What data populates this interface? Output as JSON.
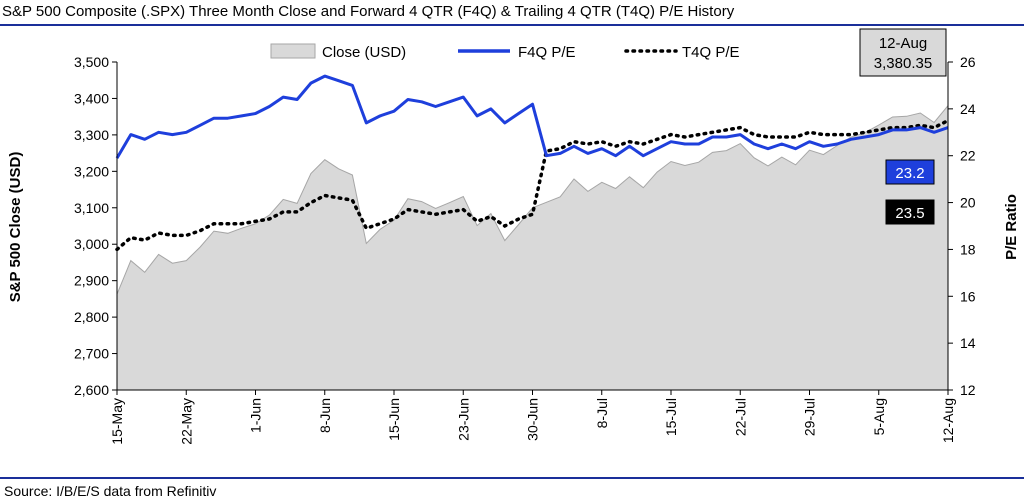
{
  "chart_data": {
    "type": "area",
    "title": "S&P 500 Composite (.SPX) Three Month Close and Forward 4 QTR (F4Q) & Trailing 4 QTR (T4Q) P/E History",
    "source": "Source: I/B/E/S data from Refinitiv",
    "ylabel_left": "S&P 500 Close (USD)",
    "ylabel_right": "P/E Ratio",
    "ylim_left": [
      2600,
      3500
    ],
    "ylim_right": [
      12,
      26
    ],
    "yticks_left": [
      "3,500",
      "3,400",
      "3,300",
      "3,200",
      "3,100",
      "3,000",
      "2,900",
      "2,800",
      "2,700",
      "2,600"
    ],
    "yticks_right": [
      "26",
      "24",
      "22",
      "20",
      "18",
      "16",
      "14",
      "12"
    ],
    "xticks": [
      "15-May",
      "22-May",
      "1-Jun",
      "8-Jun",
      "15-Jun",
      "23-Jun",
      "30-Jun",
      "8-Jul",
      "15-Jul",
      "22-Jul",
      "29-Jul",
      "5-Aug",
      "12-Aug"
    ],
    "grid": false,
    "legend": [
      "Close (USD)",
      "F4Q P/E",
      "T4Q P/E"
    ],
    "legend_position": "top",
    "callout_date": "12-Aug",
    "callout_close": "3,380.35",
    "label_f4q": "23.2",
    "label_t4q": "23.5",
    "colors": {
      "close_fill": "#d9d9d9",
      "close_stroke": "#a6a6a6",
      "f4q": "#1e3fdc",
      "t4q": "#000000",
      "accent_line": "#1a2f9a"
    },
    "series": [
      {
        "name": "Close (USD)",
        "axis": "left",
        "values": [
          2863,
          2955,
          2923,
          2972,
          2948,
          2955,
          2992,
          3036,
          3030,
          3044,
          3056,
          3080,
          3123,
          3112,
          3194,
          3232,
          3207,
          3190,
          3002,
          3041,
          3066,
          3125,
          3117,
          3098,
          3114,
          3131,
          3051,
          3084,
          3010,
          3054,
          3100,
          3115,
          3130,
          3179,
          3145,
          3170,
          3153,
          3185,
          3155,
          3198,
          3227,
          3216,
          3225,
          3252,
          3257,
          3276,
          3237,
          3215,
          3239,
          3218,
          3258,
          3246,
          3271,
          3294,
          3306,
          3327,
          3349,
          3351,
          3360,
          3334,
          3380
        ]
      },
      {
        "name": "F4Q P/E",
        "axis": "right",
        "values": [
          21.9,
          22.9,
          22.7,
          23.0,
          22.9,
          23.0,
          23.3,
          23.6,
          23.6,
          23.7,
          23.8,
          24.1,
          24.5,
          24.4,
          25.1,
          25.4,
          25.2,
          25.0,
          23.4,
          23.7,
          23.9,
          24.4,
          24.3,
          24.1,
          24.3,
          24.5,
          23.7,
          24.0,
          23.4,
          23.8,
          24.2,
          22.0,
          22.1,
          22.4,
          22.1,
          22.3,
          22.0,
          22.4,
          22.0,
          22.3,
          22.6,
          22.5,
          22.5,
          22.8,
          22.8,
          22.9,
          22.5,
          22.3,
          22.5,
          22.3,
          22.6,
          22.4,
          22.5,
          22.7,
          22.8,
          22.9,
          23.1,
          23.1,
          23.2,
          23.0,
          23.2
        ]
      },
      {
        "name": "T4Q P/E",
        "axis": "right",
        "values": [
          18.0,
          18.5,
          18.4,
          18.7,
          18.6,
          18.6,
          18.8,
          19.1,
          19.1,
          19.1,
          19.2,
          19.3,
          19.6,
          19.6,
          20.0,
          20.3,
          20.2,
          20.1,
          18.9,
          19.1,
          19.3,
          19.7,
          19.6,
          19.5,
          19.6,
          19.7,
          19.2,
          19.4,
          19.0,
          19.3,
          19.5,
          22.2,
          22.3,
          22.6,
          22.5,
          22.6,
          22.4,
          22.6,
          22.5,
          22.7,
          22.9,
          22.8,
          22.9,
          23.0,
          23.1,
          23.2,
          22.9,
          22.8,
          22.8,
          22.8,
          23.0,
          22.9,
          22.9,
          22.9,
          23.0,
          23.1,
          23.2,
          23.2,
          23.3,
          23.2,
          23.5
        ]
      }
    ]
  }
}
